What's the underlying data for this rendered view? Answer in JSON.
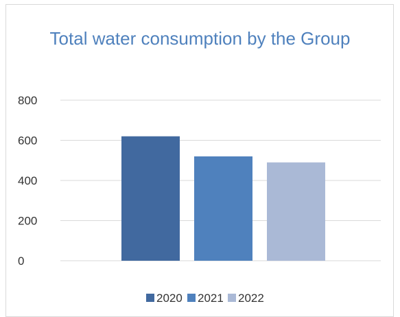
{
  "chart_data": {
    "type": "bar",
    "title": "Total water consumption by the Group",
    "xlabel": "",
    "ylabel": "",
    "ylim": [
      0,
      800
    ],
    "yticks": [
      0,
      200,
      400,
      600,
      800
    ],
    "grid": true,
    "legend_position": "bottom",
    "series": [
      {
        "name": "2020",
        "value": 620,
        "color": "#41699f"
      },
      {
        "name": "2021",
        "value": 520,
        "color": "#4f81bd"
      },
      {
        "name": "2022",
        "value": 490,
        "color": "#aab9d6"
      }
    ]
  },
  "colors": {
    "title": "#4f81bd",
    "gridline": "#d9d9d9",
    "frame_border": "#d9d9d9"
  }
}
